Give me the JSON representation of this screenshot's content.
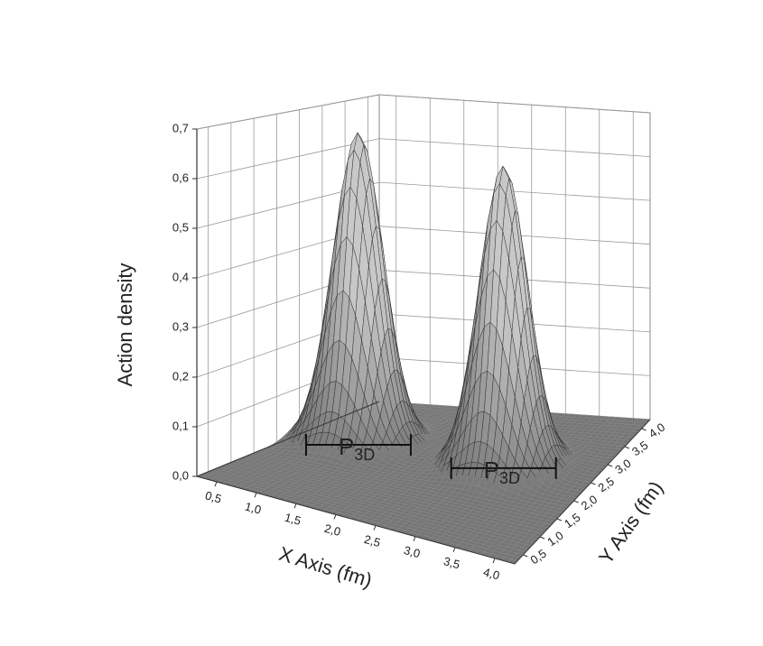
{
  "chart_data": {
    "type": "surface",
    "zlabel": "Action density",
    "xlabel": "X Axis (fm)",
    "ylabel": "Y Axis (fm)",
    "peaks": [
      {
        "x": 1.0,
        "y": 2.6,
        "z": 0.67,
        "width": 0.3
      },
      {
        "x": 3.0,
        "y": 2.6,
        "z": 0.65,
        "width": 0.3
      }
    ],
    "annotations": [
      {
        "text": "P",
        "sub": "3D"
      },
      {
        "text": "P",
        "sub": "3D"
      }
    ],
    "xlim": [
      0.25,
      4.25
    ],
    "ylim": [
      0.25,
      4.25
    ],
    "zlim": [
      0,
      0.7
    ],
    "xticks": [
      {
        "value": 0.5,
        "label": "0,5"
      },
      {
        "value": 1.0,
        "label": "1,0"
      },
      {
        "value": 1.5,
        "label": "1,5"
      },
      {
        "value": 2.0,
        "label": "2,0"
      },
      {
        "value": 2.5,
        "label": "2,5"
      },
      {
        "value": 3.0,
        "label": "3,0"
      },
      {
        "value": 3.5,
        "label": "3,5"
      },
      {
        "value": 4.0,
        "label": "4,0"
      }
    ],
    "yticks": [
      {
        "value": 0.5,
        "label": "0,5"
      },
      {
        "value": 1.0,
        "label": "1,0"
      },
      {
        "value": 1.5,
        "label": "1,5"
      },
      {
        "value": 2.0,
        "label": "2,0"
      },
      {
        "value": 2.5,
        "label": "2,5"
      },
      {
        "value": 3.0,
        "label": "3,0"
      },
      {
        "value": 3.5,
        "label": "3,5"
      },
      {
        "value": 4.0,
        "label": "4,0"
      }
    ],
    "zticks": [
      {
        "value": 0.0,
        "label": "0,0"
      },
      {
        "value": 0.1,
        "label": "0,1"
      },
      {
        "value": 0.2,
        "label": "0,2"
      },
      {
        "value": 0.3,
        "label": "0,3"
      },
      {
        "value": 0.4,
        "label": "0,4"
      },
      {
        "value": 0.5,
        "label": "0,5"
      },
      {
        "value": 0.6,
        "label": "0,6"
      },
      {
        "value": 0.7,
        "label": "0,7"
      }
    ],
    "grid": true,
    "color": "#555555"
  }
}
